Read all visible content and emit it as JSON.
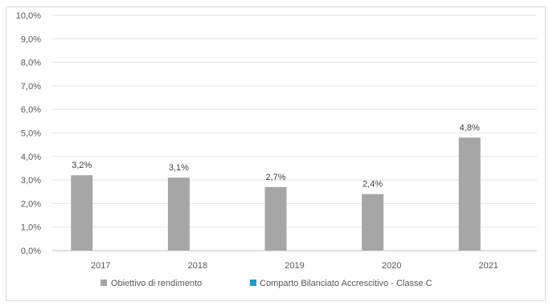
{
  "chart_data": {
    "type": "bar",
    "categories": [
      "2017",
      "2018",
      "2019",
      "2020",
      "2021"
    ],
    "series": [
      {
        "name": "Obiettivo di rendimento",
        "color": "#a6a6a6",
        "values": [
          3.2,
          3.1,
          2.7,
          2.4,
          4.8
        ],
        "labels": [
          "3,2%",
          "3,1%",
          "2,7%",
          "2,4%",
          "4,8%"
        ]
      },
      {
        "name": "Comparto Bilanciato Accrescitivo - Classe C",
        "color": "#1f9bc7",
        "values": [
          null,
          null,
          null,
          null,
          null
        ],
        "labels": []
      }
    ],
    "yticks": [
      "0,0%",
      "1,0%",
      "2,0%",
      "3,0%",
      "4,0%",
      "5,0%",
      "6,0%",
      "7,0%",
      "8,0%",
      "9,0%",
      "10,0%"
    ],
    "ylim": [
      0,
      10
    ],
    "grid": true,
    "legend_position": "bottom"
  }
}
